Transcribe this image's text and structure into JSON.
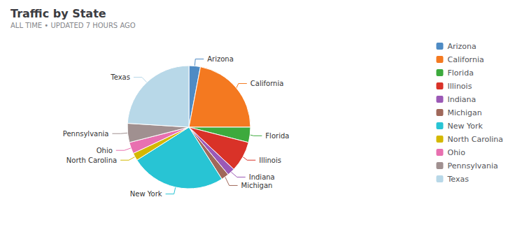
{
  "chart_data": {
    "type": "pie",
    "title": "Traffic by State",
    "subtitle": "ALL TIME • UPDATED 7 HOURS AGO",
    "categories": [
      "Arizona",
      "California",
      "Florida",
      "Illinois",
      "Indiana",
      "Michigan",
      "New York",
      "North Carolina",
      "Ohio",
      "Pennsylvania",
      "Texas"
    ],
    "values": [
      3,
      22,
      4,
      8,
      2,
      2,
      25,
      2,
      3,
      5,
      24
    ],
    "colors": [
      "#4e8bc4",
      "#f47920",
      "#3daa3d",
      "#d93228",
      "#9b59b6",
      "#a0685a",
      "#28c4d4",
      "#d4b800",
      "#e870b0",
      "#a09090",
      "#b8d8e8"
    ],
    "legend": "right"
  }
}
